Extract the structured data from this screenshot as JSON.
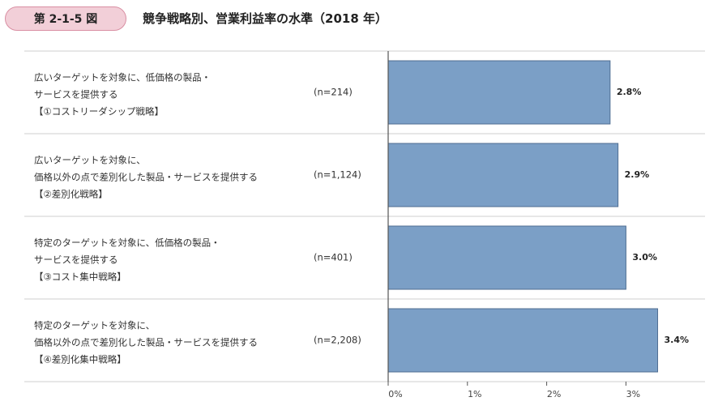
{
  "header": {
    "figure_number": "第 2-1-5 図",
    "title": "競争戦略別、営業利益率の水準（2018 年）"
  },
  "colors": {
    "bar": "#7b9fc6",
    "bar_stroke": "#4f6e92",
    "badge_fill": "#f2cfd8"
  },
  "chart_data": {
    "type": "bar",
    "orientation": "horizontal",
    "categories": [
      {
        "lines": [
          "広いターゲットを対象に、低価格の製品・",
          "サービスを提供する",
          "【①コストリーダシップ戦略】"
        ],
        "n": "(n=214)"
      },
      {
        "lines": [
          "広いターゲットを対象に、",
          "価格以外の点で差別化した製品・サービスを提供する",
          "【②差別化戦略】"
        ],
        "n": "(n=1,124)"
      },
      {
        "lines": [
          "特定のターゲットを対象に、低価格の製品・",
          "サービスを提供する",
          "【③コスト集中戦略】"
        ],
        "n": "(n=401)"
      },
      {
        "lines": [
          "特定のターゲットを対象に、",
          "価格以外の点で差別化した製品・サービスを提供する",
          "【④差別化集中戦略】"
        ],
        "n": "(n=2,208)"
      }
    ],
    "values": [
      2.8,
      2.9,
      3.0,
      3.4
    ],
    "value_labels": [
      "2.8%",
      "2.9%",
      "3.0%",
      "3.4%"
    ],
    "xlim": [
      0,
      4
    ],
    "ticks": [
      0,
      1,
      2,
      3
    ],
    "tick_labels": [
      "0%",
      "1%",
      "2%",
      "3%"
    ],
    "grid": false
  }
}
